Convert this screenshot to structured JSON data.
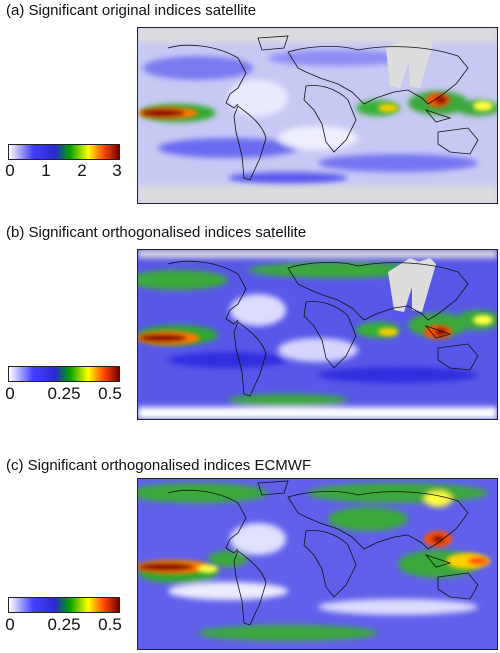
{
  "panels": [
    {
      "title": "(a) Significant original indices satellite",
      "colorbar_ticks": [
        "0",
        "1",
        "2",
        "3"
      ]
    },
    {
      "title": "(b) Significant orthogonalised indices satellite",
      "colorbar_ticks": [
        "0",
        "0.25",
        "0.5"
      ]
    },
    {
      "title": "(c) Significant orthogonalised indices ECMWF",
      "colorbar_ticks": [
        "0",
        "0.25",
        "0.5"
      ]
    }
  ],
  "chart_data": [
    {
      "type": "heatmap",
      "title": "(a) Significant original indices satellite",
      "colorbar": {
        "min": 0,
        "max": 3,
        "ticks": [
          0,
          1,
          2,
          3
        ]
      },
      "colormap": [
        "#ffffff",
        "#3b3bff",
        "#00a000",
        "#ffff00",
        "#ff6a00",
        "#8b0000"
      ],
      "missing_color": "#dddddd"
    },
    {
      "type": "heatmap",
      "title": "(b) Significant orthogonalised indices satellite",
      "colorbar": {
        "min": 0,
        "max": 0.5,
        "ticks": [
          0,
          0.25,
          0.5
        ]
      },
      "colormap": [
        "#ffffff",
        "#3b3bff",
        "#00a000",
        "#ffff00",
        "#ff6a00",
        "#8b0000"
      ],
      "missing_color": "#dddddd"
    },
    {
      "type": "heatmap",
      "title": "(c) Significant orthogonalised indices ECMWF",
      "colorbar": {
        "min": 0,
        "max": 0.5,
        "ticks": [
          0,
          0.25,
          0.5
        ]
      },
      "colormap": [
        "#ffffff",
        "#3b3bff",
        "#00a000",
        "#ffff00",
        "#ff6a00",
        "#8b0000"
      ]
    }
  ]
}
